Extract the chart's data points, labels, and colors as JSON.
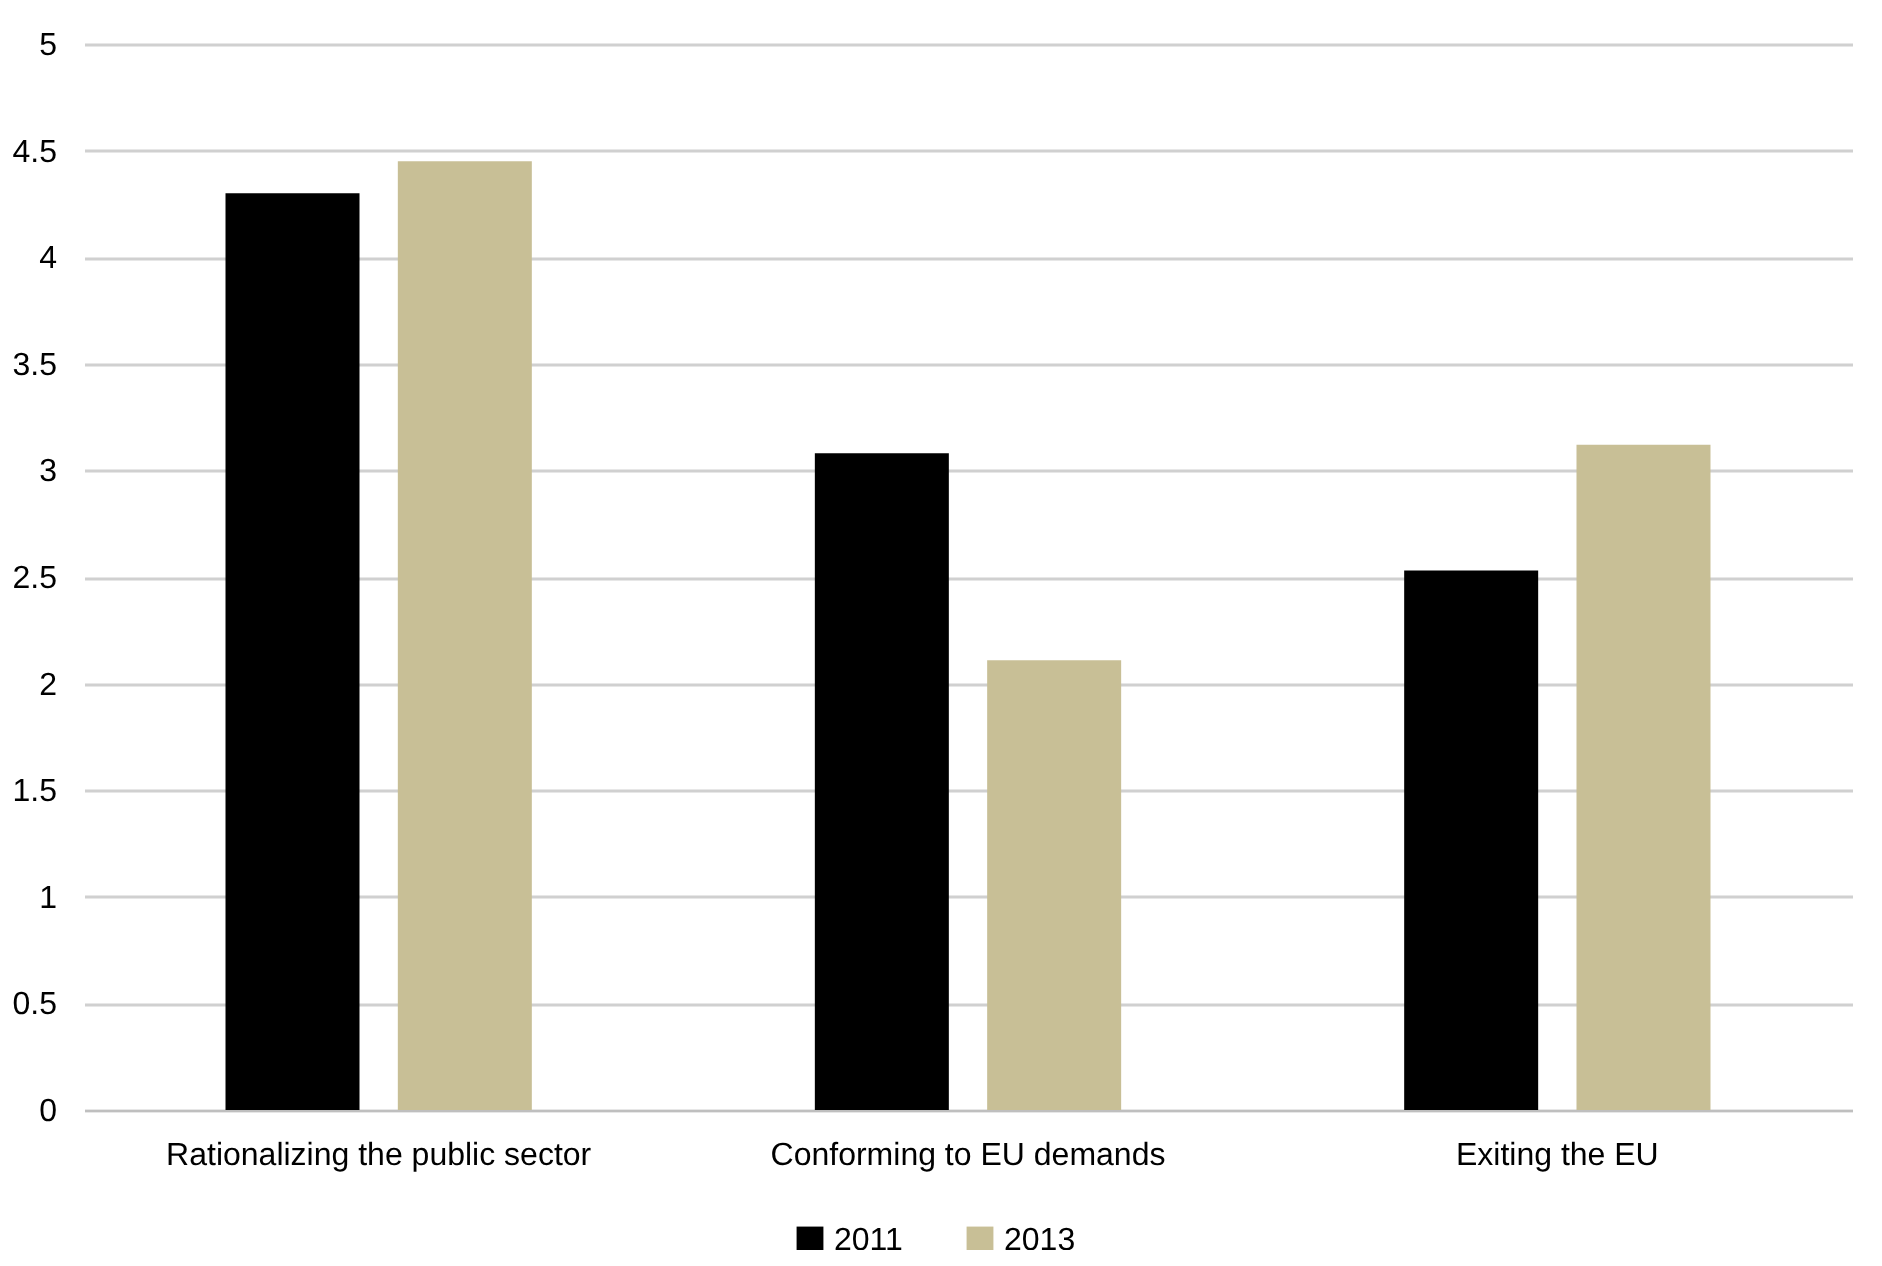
{
  "chart_data": {
    "type": "bar",
    "categories": [
      "Rationalizing the public sector",
      "Conforming to EU demands",
      "Exiting the EU"
    ],
    "series": [
      {
        "name": "2011",
        "color": "#000000",
        "values": [
          4.3,
          3.08,
          2.53
        ]
      },
      {
        "name": "2013",
        "color": "#c8bf96",
        "values": [
          4.45,
          2.11,
          3.12
        ]
      }
    ],
    "ylim": [
      0,
      5
    ],
    "yticks": [
      0,
      0.5,
      1,
      1.5,
      2,
      2.5,
      3,
      3.5,
      4,
      4.5,
      5
    ],
    "grid": "y",
    "legend": "bottom"
  }
}
